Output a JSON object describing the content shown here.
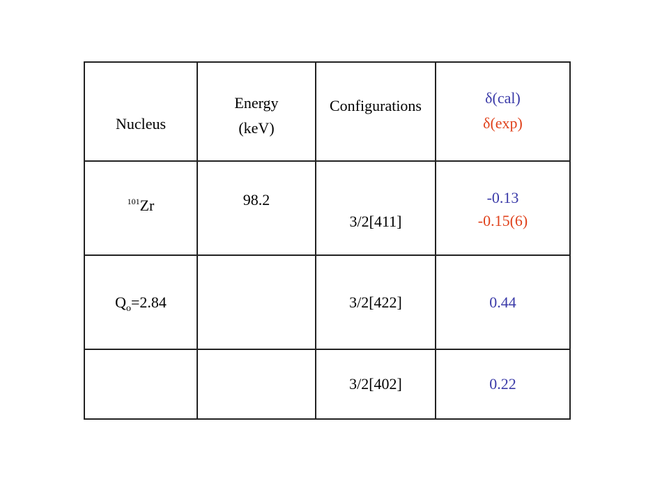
{
  "table": {
    "header": {
      "nucleus": "Nucleus",
      "energy": "Energy (keV)",
      "configuration": "Configurations",
      "delta_cal": "δ(cal)",
      "delta_exp": "δ(exp)"
    },
    "rows": [
      {
        "nucleus": {
          "mass": "101",
          "symbol": "Zr"
        },
        "energy": "98.2",
        "configuration": "3/2[411]",
        "delta_cal": "-0.13",
        "delta_exp": "-0.15(6)"
      },
      {
        "nucleus": {
          "symbol": "Q",
          "subscript": "o",
          "rest": "=2.84"
        },
        "configuration": "3/2[422]",
        "delta_cal": "0.44"
      },
      {
        "configuration": "3/2[402]",
        "delta_cal": "0.22"
      }
    ]
  }
}
